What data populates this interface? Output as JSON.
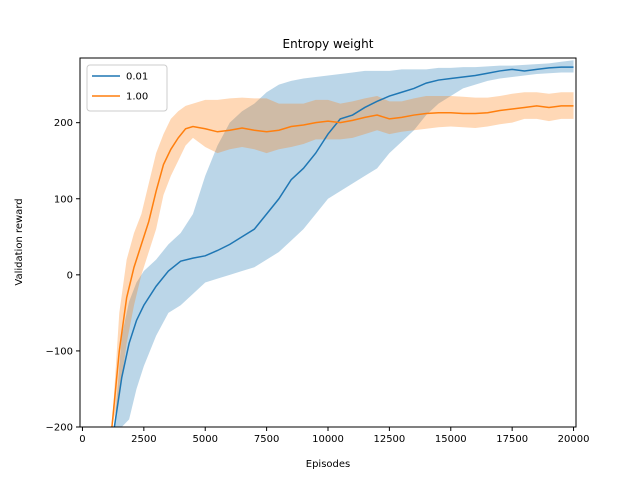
{
  "chart_data": {
    "type": "line",
    "title": "Entropy weight",
    "xlabel": "Episodes",
    "ylabel": "Validation reward",
    "xlim": [
      -100,
      20100
    ],
    "ylim": [
      -200,
      285
    ],
    "xticks": [
      0,
      2500,
      5000,
      7500,
      10000,
      12500,
      15000,
      17500,
      20000
    ],
    "yticks": [
      -200,
      -100,
      0,
      100,
      200
    ],
    "grid": false,
    "legend": "top-left",
    "series": [
      {
        "name": "0.01",
        "color": "#1f77b4",
        "band_color": "#1f77b4",
        "x": [
          1300,
          1600,
          1900,
          2200,
          2500,
          3000,
          3500,
          4000,
          4500,
          5000,
          5500,
          6000,
          6500,
          7000,
          7500,
          8000,
          8500,
          9000,
          9500,
          10000,
          10500,
          11000,
          11500,
          12000,
          12500,
          13000,
          13500,
          14000,
          14500,
          15000,
          15500,
          16000,
          16500,
          17000,
          17500,
          18000,
          18500,
          19000,
          19500,
          20000
        ],
        "y": [
          -200,
          -135,
          -90,
          -60,
          -40,
          -15,
          5,
          18,
          22,
          25,
          32,
          40,
          50,
          60,
          80,
          100,
          125,
          140,
          160,
          185,
          205,
          210,
          220,
          228,
          235,
          240,
          245,
          252,
          256,
          258,
          260,
          262,
          265,
          268,
          270,
          268,
          270,
          272,
          273,
          273
        ],
        "upper": [
          -200,
          -80,
          -35,
          -10,
          5,
          20,
          40,
          55,
          80,
          130,
          170,
          200,
          215,
          225,
          240,
          250,
          255,
          258,
          260,
          262,
          264,
          266,
          268,
          268,
          268,
          270,
          270,
          270,
          272,
          272,
          273,
          273,
          274,
          275,
          275,
          276,
          277,
          278,
          280,
          282
        ],
        "lower": [
          -200,
          -200,
          -190,
          -150,
          -120,
          -80,
          -50,
          -40,
          -25,
          -10,
          -5,
          0,
          5,
          10,
          20,
          30,
          45,
          60,
          80,
          100,
          110,
          120,
          130,
          140,
          160,
          175,
          190,
          210,
          225,
          235,
          245,
          250,
          255,
          258,
          260,
          262,
          264,
          265,
          266,
          266
        ]
      },
      {
        "name": "1.00",
        "color": "#ff7f0e",
        "band_color": "#ff7f0e",
        "x": [
          1200,
          1500,
          1800,
          2100,
          2400,
          2700,
          3000,
          3300,
          3600,
          3900,
          4200,
          4500,
          5000,
          5500,
          6000,
          6500,
          7000,
          7500,
          8000,
          8500,
          9000,
          9500,
          10000,
          10500,
          11000,
          11500,
          12000,
          12500,
          13000,
          13500,
          14000,
          14500,
          15000,
          15500,
          16000,
          16500,
          17000,
          17500,
          18000,
          18500,
          19000,
          19500,
          20000
        ],
        "y": [
          -200,
          -100,
          -30,
          10,
          40,
          70,
          110,
          145,
          165,
          180,
          192,
          195,
          192,
          188,
          190,
          193,
          190,
          188,
          190,
          195,
          197,
          200,
          202,
          200,
          203,
          207,
          210,
          205,
          207,
          210,
          212,
          213,
          213,
          212,
          212,
          213,
          216,
          218,
          220,
          222,
          220,
          222,
          222
        ],
        "upper": [
          -200,
          -50,
          20,
          55,
          80,
          120,
          160,
          185,
          205,
          215,
          222,
          225,
          230,
          230,
          232,
          233,
          232,
          232,
          225,
          225,
          225,
          230,
          230,
          225,
          228,
          232,
          235,
          228,
          228,
          232,
          235,
          235,
          235,
          234,
          233,
          233,
          235,
          238,
          240,
          240,
          238,
          240,
          240
        ],
        "lower": [
          -200,
          -160,
          -90,
          -40,
          0,
          30,
          60,
          105,
          130,
          150,
          170,
          180,
          168,
          160,
          165,
          168,
          165,
          160,
          165,
          168,
          172,
          178,
          178,
          178,
          180,
          185,
          190,
          185,
          188,
          190,
          192,
          194,
          195,
          194,
          193,
          195,
          198,
          200,
          205,
          205,
          202,
          205,
          205
        ]
      }
    ]
  }
}
